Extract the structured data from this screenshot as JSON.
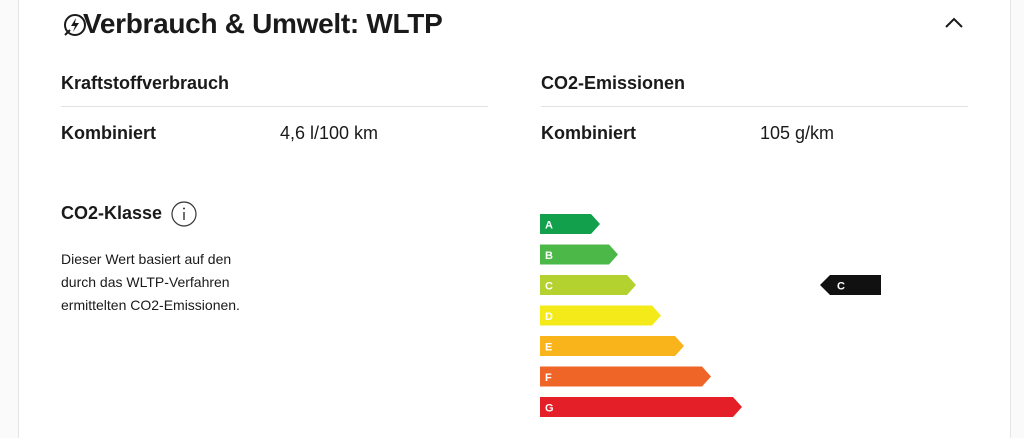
{
  "header": {
    "title": "Verbrauch & Umwelt: WLTP"
  },
  "fuel": {
    "heading": "Kraftstoffverbrauch",
    "rows": [
      {
        "label": "Kombiniert",
        "value": "4,6 l/100 km"
      }
    ]
  },
  "emissions": {
    "heading": "CO2-Emissionen",
    "rows": [
      {
        "label": "Kombiniert",
        "value": "105 g/km"
      }
    ]
  },
  "co2_class": {
    "heading": "CO2-Klasse",
    "description": [
      "Dieser Wert basiert auf den",
      "durch das WLTP-Verfahren",
      "ermittelten CO2-Emissionen."
    ],
    "classes": [
      "A",
      "B",
      "C",
      "D",
      "E",
      "F",
      "G"
    ],
    "selected": "C"
  }
}
